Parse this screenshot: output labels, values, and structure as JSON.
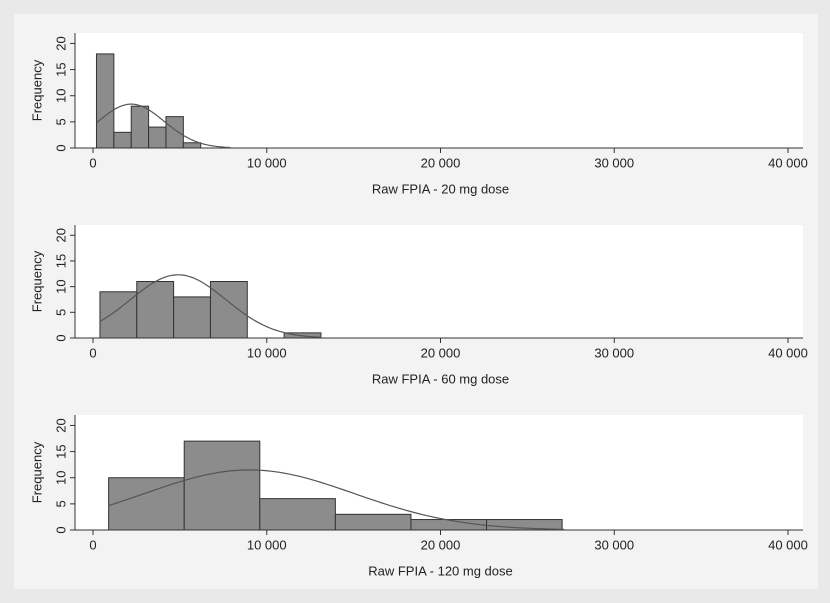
{
  "chart_data": [
    {
      "type": "histogram",
      "x_label": "Raw FPIA - 20 mg dose",
      "y_label": "Frequency",
      "bins": [
        200,
        1200,
        2200,
        3200,
        4200,
        5200,
        6200
      ],
      "values": [
        18,
        3,
        8,
        4,
        6,
        1
      ],
      "color": "#8c8c8c",
      "normal_curve": {
        "mean": 2200,
        "sd": 1900,
        "color": "#555555"
      },
      "xlim": [
        0,
        40000
      ],
      "xticks": [
        0,
        {
          "value": 10000,
          "label": "10 000"
        },
        {
          "value": 20000,
          "label": "20 000"
        },
        {
          "value": 30000,
          "label": "30 000"
        },
        {
          "value": 40000,
          "label": "40 000"
        }
      ],
      "ylim": [
        0,
        22
      ],
      "yticks": [
        0,
        5,
        10,
        15,
        20
      ]
    },
    {
      "type": "histogram",
      "x_label": "Raw FPIA - 60 mg dose",
      "y_label": "Frequency",
      "bins": [
        400,
        2520,
        4640,
        6760,
        8880,
        11000,
        13120
      ],
      "values": [
        9,
        11,
        8,
        11,
        0,
        1
      ],
      "color": "#8c8c8c",
      "normal_curve": {
        "mean": 4900,
        "sd": 2750,
        "color": "#555555"
      },
      "xlim": [
        0,
        40000
      ],
      "xticks": [
        0,
        {
          "value": 10000,
          "label": "10 000"
        },
        {
          "value": 20000,
          "label": "20 000"
        },
        {
          "value": 30000,
          "label": "30 000"
        },
        {
          "value": 40000,
          "label": "40 000"
        }
      ],
      "ylim": [
        0,
        22
      ],
      "yticks": [
        0,
        5,
        10,
        15,
        20
      ]
    },
    {
      "type": "histogram",
      "x_label": "Raw FPIA - 120 mg dose",
      "y_label": "Frequency",
      "bins": [
        900,
        5250,
        9600,
        13950,
        18300,
        22650,
        27000
      ],
      "values": [
        10,
        17,
        6,
        3,
        2,
        2
      ],
      "color": "#8c8c8c",
      "normal_curve": {
        "mean": 9000,
        "sd": 6040,
        "color": "#555555"
      },
      "xlim": [
        0,
        40000
      ],
      "xticks": [
        0,
        {
          "value": 10000,
          "label": "10 000"
        },
        {
          "value": 20000,
          "label": "20 000"
        },
        {
          "value": 30000,
          "label": "30 000"
        },
        {
          "value": 40000,
          "label": "40 000"
        }
      ],
      "ylim": [
        0,
        22
      ],
      "yticks": [
        0,
        5,
        10,
        15,
        20
      ]
    }
  ]
}
